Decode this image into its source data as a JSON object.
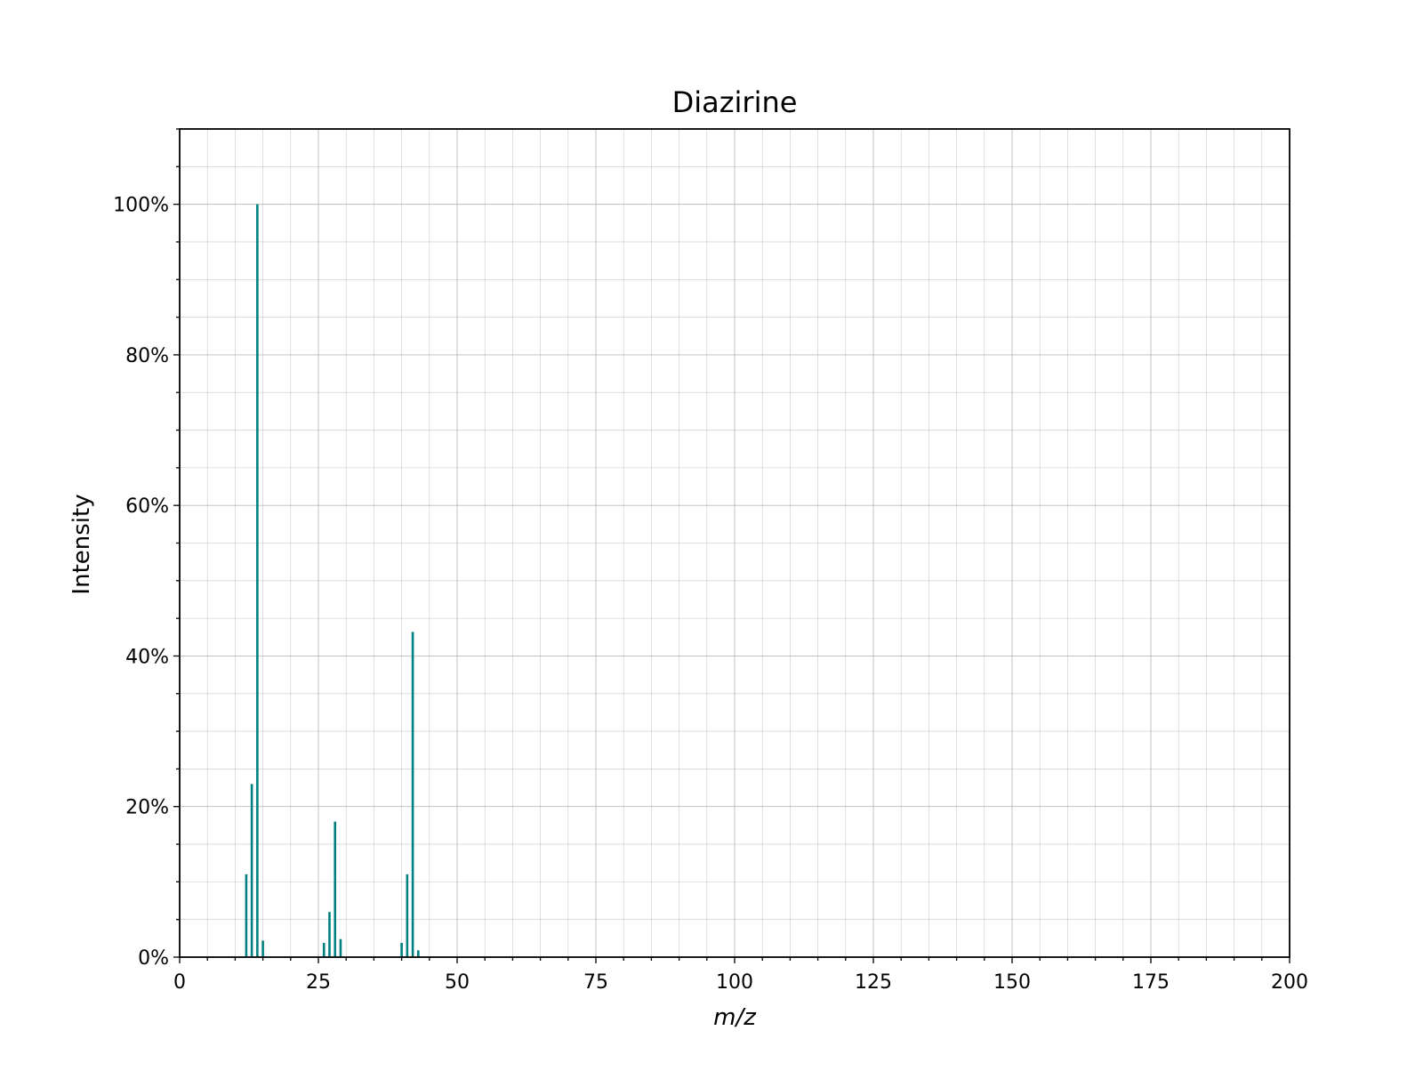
{
  "chart_data": {
    "type": "bar",
    "title": "Diazirine",
    "xlabel": "m/z",
    "ylabel": "Intensity",
    "xlim": [
      0,
      200
    ],
    "ylim": [
      0,
      110
    ],
    "x_ticks": [
      0,
      25,
      50,
      75,
      100,
      125,
      150,
      175,
      200
    ],
    "x_tick_labels": [
      "0",
      "25",
      "50",
      "75",
      "100",
      "125",
      "150",
      "175",
      "200"
    ],
    "x_minor_step": 5,
    "y_ticks": [
      0,
      20,
      40,
      60,
      80,
      100
    ],
    "y_tick_labels": [
      "0%",
      "20%",
      "40%",
      "60%",
      "80%",
      "100%"
    ],
    "y_minor_step": 5,
    "grid": true,
    "series": [
      {
        "color": "#008080",
        "x": [
          12,
          13,
          14,
          15,
          26,
          27,
          28,
          29,
          40,
          41,
          42,
          43
        ],
        "values": [
          11,
          23,
          100,
          2.2,
          1.9,
          6,
          18,
          2.4,
          1.9,
          11,
          43.2,
          0.9
        ]
      }
    ]
  }
}
